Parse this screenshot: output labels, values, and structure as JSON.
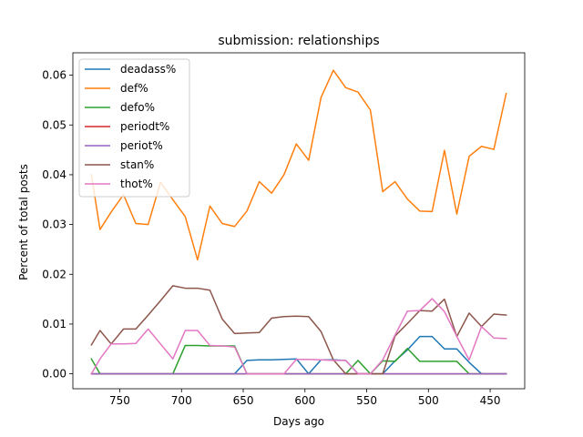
{
  "chart_data": {
    "type": "line",
    "title": "submission: relationships",
    "xlabel": "Days ago",
    "ylabel": "Percent of total posts",
    "x_inverted": true,
    "xlim": [
      788,
      422
    ],
    "ylim": [
      -0.003,
      0.0645
    ],
    "xticks": [
      750,
      700,
      650,
      600,
      550,
      500,
      450
    ],
    "xtick_labels": [
      "750",
      "700",
      "650",
      "600",
      "550",
      "500",
      "450"
    ],
    "yticks": [
      0.0,
      0.01,
      0.02,
      0.03,
      0.04,
      0.05,
      0.06
    ],
    "ytick_labels": [
      "0.00",
      "0.01",
      "0.02",
      "0.03",
      "0.04",
      "0.05",
      "0.06"
    ],
    "grid": false,
    "legend_position": "top-left",
    "x": [
      773,
      766,
      757,
      747,
      737,
      727,
      717,
      707,
      697,
      687,
      677,
      667,
      657,
      647,
      637,
      627,
      617,
      607,
      597,
      587,
      577,
      567,
      557,
      547,
      537,
      527,
      517,
      507,
      497,
      487,
      477,
      467,
      457,
      447,
      437
    ],
    "series": [
      {
        "name": "deadass%",
        "color": "#1f77b4",
        "values": [
          0.0,
          0.0,
          0.0,
          0.0,
          0.0,
          0.0,
          0.0,
          0.0,
          0.0,
          0.0,
          0.0,
          0.0,
          0.0,
          0.0027,
          0.0028,
          0.0028,
          0.0029,
          0.003,
          0.0,
          0.0028,
          0.0028,
          0.0027,
          0.0,
          0.0,
          0.0,
          0.0026,
          0.0048,
          0.0075,
          0.0075,
          0.005,
          0.005,
          0.0023,
          0.0,
          0.0,
          0.0
        ]
      },
      {
        "name": "def%",
        "color": "#ff7f0e",
        "values": [
          0.04,
          0.029,
          0.0325,
          0.036,
          0.0302,
          0.03,
          0.0385,
          0.035,
          0.0316,
          0.0229,
          0.0337,
          0.0302,
          0.0296,
          0.0327,
          0.0386,
          0.0363,
          0.04,
          0.0462,
          0.0429,
          0.0555,
          0.061,
          0.0575,
          0.0566,
          0.053,
          0.0366,
          0.0386,
          0.0351,
          0.0327,
          0.0326,
          0.0449,
          0.0321,
          0.0437,
          0.0457,
          0.0451,
          0.0563
        ]
      },
      {
        "name": "defo%",
        "color": "#2ca02c",
        "values": [
          0.003,
          0.0,
          0.0,
          0.0,
          0.0,
          0.0,
          0.0,
          0.0,
          0.0057,
          0.0057,
          0.0056,
          0.0056,
          0.0056,
          0.0,
          0.0,
          0.0,
          0.0,
          0.0,
          0.0,
          0.0,
          0.0,
          0.0,
          0.0027,
          0.0,
          0.0026,
          0.0025,
          0.0051,
          0.0025,
          0.0025,
          0.0025,
          0.0025,
          0.0,
          0.0,
          0.0,
          0.0
        ]
      },
      {
        "name": "periodt%",
        "color": "#d62728",
        "values": [
          0.0,
          0.0,
          0.0,
          0.0,
          0.0,
          0.0,
          0.0,
          0.0,
          0.0,
          0.0,
          0.0,
          0.0,
          0.0,
          0.0,
          0.0,
          0.0,
          0.0,
          0.0,
          0.0,
          0.0,
          0.0,
          0.0,
          0.0,
          0.0,
          0.0,
          0.0,
          0.0,
          0.0,
          0.0,
          0.0,
          0.0,
          0.0,
          0.0,
          0.0,
          0.0
        ]
      },
      {
        "name": "periot%",
        "color": "#9467bd",
        "values": [
          0.0,
          0.0,
          0.0,
          0.0,
          0.0,
          0.0,
          0.0,
          0.0,
          0.0,
          0.0,
          0.0,
          0.0,
          0.0,
          0.0,
          0.0,
          0.0,
          0.0,
          0.0,
          0.0,
          0.0,
          0.0,
          0.0,
          0.0,
          0.0,
          0.0,
          0.0,
          0.0,
          0.0,
          0.0,
          0.0,
          0.0,
          0.0,
          0.0,
          0.0,
          0.0
        ]
      },
      {
        "name": "stan%",
        "color": "#8c564b",
        "values": [
          0.0058,
          0.0087,
          0.006,
          0.009,
          0.009,
          0.0118,
          0.0147,
          0.0177,
          0.0172,
          0.0172,
          0.0168,
          0.011,
          0.0081,
          0.0082,
          0.0083,
          0.0112,
          0.0115,
          0.0116,
          0.0115,
          0.0085,
          0.0028,
          0.0,
          0.0,
          0.0,
          0.0,
          0.0076,
          0.0101,
          0.0127,
          0.0126,
          0.015,
          0.0075,
          0.0122,
          0.0095,
          0.012,
          0.0118
        ]
      },
      {
        "name": "thot%",
        "color": "#e377c2",
        "values": [
          0.0,
          0.003,
          0.006,
          0.006,
          0.0061,
          0.009,
          0.006,
          0.003,
          0.0087,
          0.0087,
          0.0057,
          0.0056,
          0.0054,
          0.0,
          0.0,
          0.0,
          0.0,
          0.0029,
          0.0029,
          0.0028,
          0.0027,
          0.0027,
          0.0,
          0.0,
          0.0028,
          0.0078,
          0.0126,
          0.0127,
          0.0151,
          0.0125,
          0.0075,
          0.0028,
          0.0095,
          0.0072,
          0.0071
        ]
      }
    ]
  }
}
